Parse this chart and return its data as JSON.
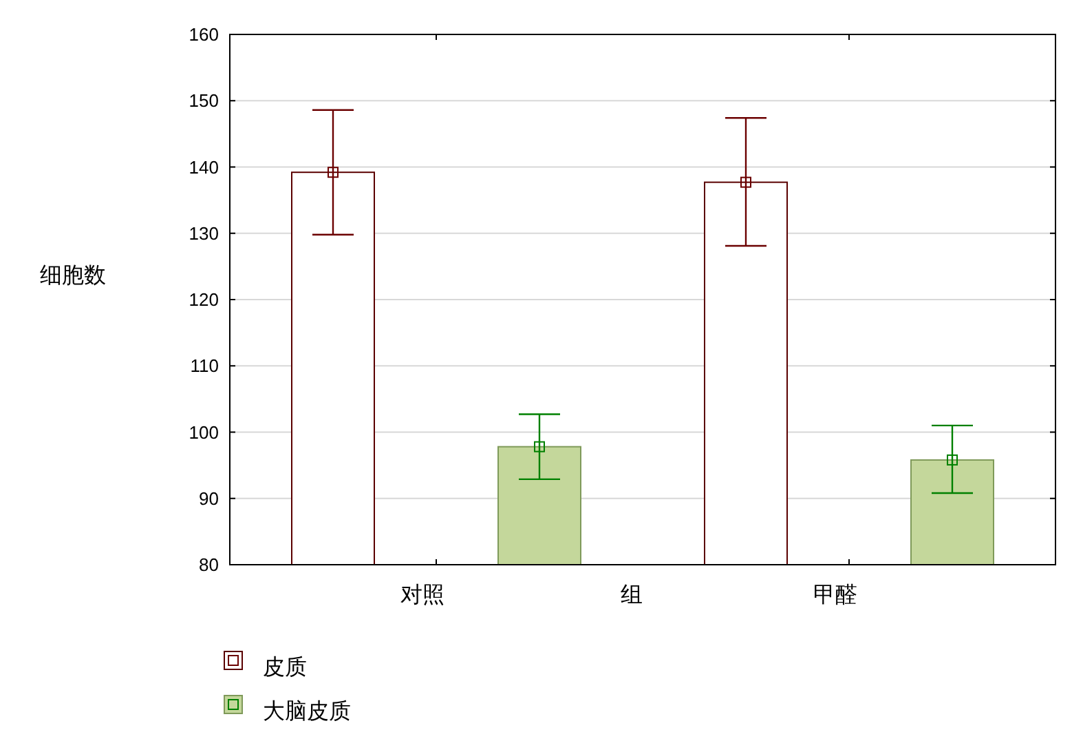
{
  "chart_data": {
    "type": "bar",
    "xlabel": "组",
    "ylabel": "细胞数",
    "categories": [
      "对照",
      "甲醛"
    ],
    "series": [
      {
        "name": "皮质",
        "color": "#ffffff",
        "values": [
          139.2,
          137.7
        ],
        "errors": [
          [
            129.8,
            148.6
          ],
          [
            128.1,
            147.4
          ]
        ]
      },
      {
        "name": "大脑皮质",
        "color": "#c4d79b",
        "values": [
          97.8,
          95.8
        ],
        "errors": [
          [
            92.9,
            102.7
          ],
          [
            90.8,
            101.0
          ]
        ]
      },
      {
        "type": "scatter",
        "color": "#6b0000",
        "x": [
          "对照",
          "甲醛"
        ],
        "values": [
          139.2,
          137.7
        ]
      },
      {
        "type": "scatter",
        "color": "#008000",
        "x": [
          "对照",
          "甲醛"
        ],
        "values": [
          97.8,
          95.8
        ]
      }
    ],
    "ylim": [
      80,
      160
    ],
    "yticks": [
      80,
      90,
      100,
      110,
      120,
      130,
      140,
      150,
      160
    ],
    "grid": "y",
    "legend": "bottom left",
    "marker": "square"
  }
}
